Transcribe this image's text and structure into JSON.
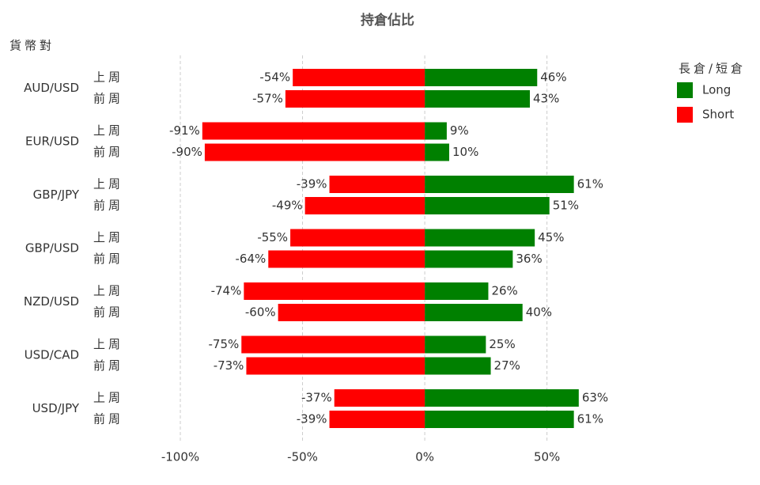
{
  "chart_data": {
    "type": "diverging-bar",
    "title": "持倉佔比",
    "y_axis_label": "貨幣對",
    "legend_title": "長倉/短倉",
    "legend_position": "right",
    "groups": [
      "AUD/USD",
      "EUR/USD",
      "GBP/JPY",
      "GBP/USD",
      "NZD/USD",
      "USD/CAD",
      "USD/JPY"
    ],
    "categories": [
      "上周",
      "前周",
      "上周",
      "前周",
      "上周",
      "前周",
      "上周",
      "前周",
      "上周",
      "前周",
      "上周",
      "前周",
      "上周",
      "前周"
    ],
    "series": [
      {
        "name": "Long",
        "color": "#008000",
        "values": [
          46,
          43,
          9,
          10,
          61,
          51,
          45,
          36,
          26,
          40,
          25,
          27,
          63,
          61
        ],
        "value_labels": [
          "46%",
          "43%",
          "9%",
          "10%",
          "61%",
          "51%",
          "45%",
          "36%",
          "26%",
          "40%",
          "25%",
          "27%",
          "63%",
          "61%"
        ]
      },
      {
        "name": "Short",
        "color": "#ff0000",
        "values": [
          -54,
          -57,
          -91,
          -90,
          -39,
          -49,
          -55,
          -64,
          -74,
          -60,
          -75,
          -73,
          -37,
          -39
        ],
        "value_labels": [
          "-54%",
          "-57%",
          "-91%",
          "-90%",
          "-39%",
          "-49%",
          "-55%",
          "-64%",
          "-74%",
          "-60%",
          "-75%",
          "-73%",
          "-37%",
          "-39%"
        ]
      }
    ],
    "xlim": [
      -100,
      65
    ],
    "xticks": [
      {
        "value": -100,
        "label": "-100%"
      },
      {
        "value": -50,
        "label": "-50%"
      },
      {
        "value": 0,
        "label": "0%"
      },
      {
        "value": 50,
        "label": "50%"
      }
    ],
    "grid": true
  }
}
